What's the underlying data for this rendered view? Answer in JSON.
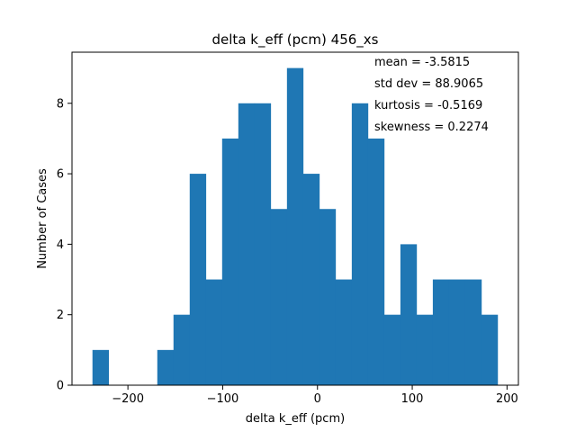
{
  "chart_data": {
    "type": "bar",
    "title": "delta k_eff (pcm) 456_xs",
    "xlabel": "delta k_eff (pcm)",
    "ylabel": "Number of Cases",
    "xlim": [
      -259,
      212
    ],
    "ylim": [
      0,
      9.45
    ],
    "xticks": [
      -200,
      -100,
      0,
      100,
      200
    ],
    "yticks": [
      0,
      2,
      4,
      6,
      8
    ],
    "xtick_labels": [
      "−200",
      "−100",
      "0",
      "100",
      "200"
    ],
    "ytick_labels": [
      "0",
      "2",
      "4",
      "6",
      "8"
    ],
    "bin_start": -237.4,
    "bin_width": 17.1,
    "values": [
      1,
      0,
      0,
      0,
      1,
      2,
      6,
      3,
      7,
      8,
      8,
      5,
      9,
      6,
      5,
      3,
      8,
      7,
      2,
      4,
      2,
      3,
      3,
      3,
      2
    ],
    "bar_color": "#1f77b4",
    "annotations": [
      "mean = -3.5815",
      "std dev = 88.9065",
      "kurtosis = -0.5169",
      "skewness = 0.2274"
    ]
  }
}
